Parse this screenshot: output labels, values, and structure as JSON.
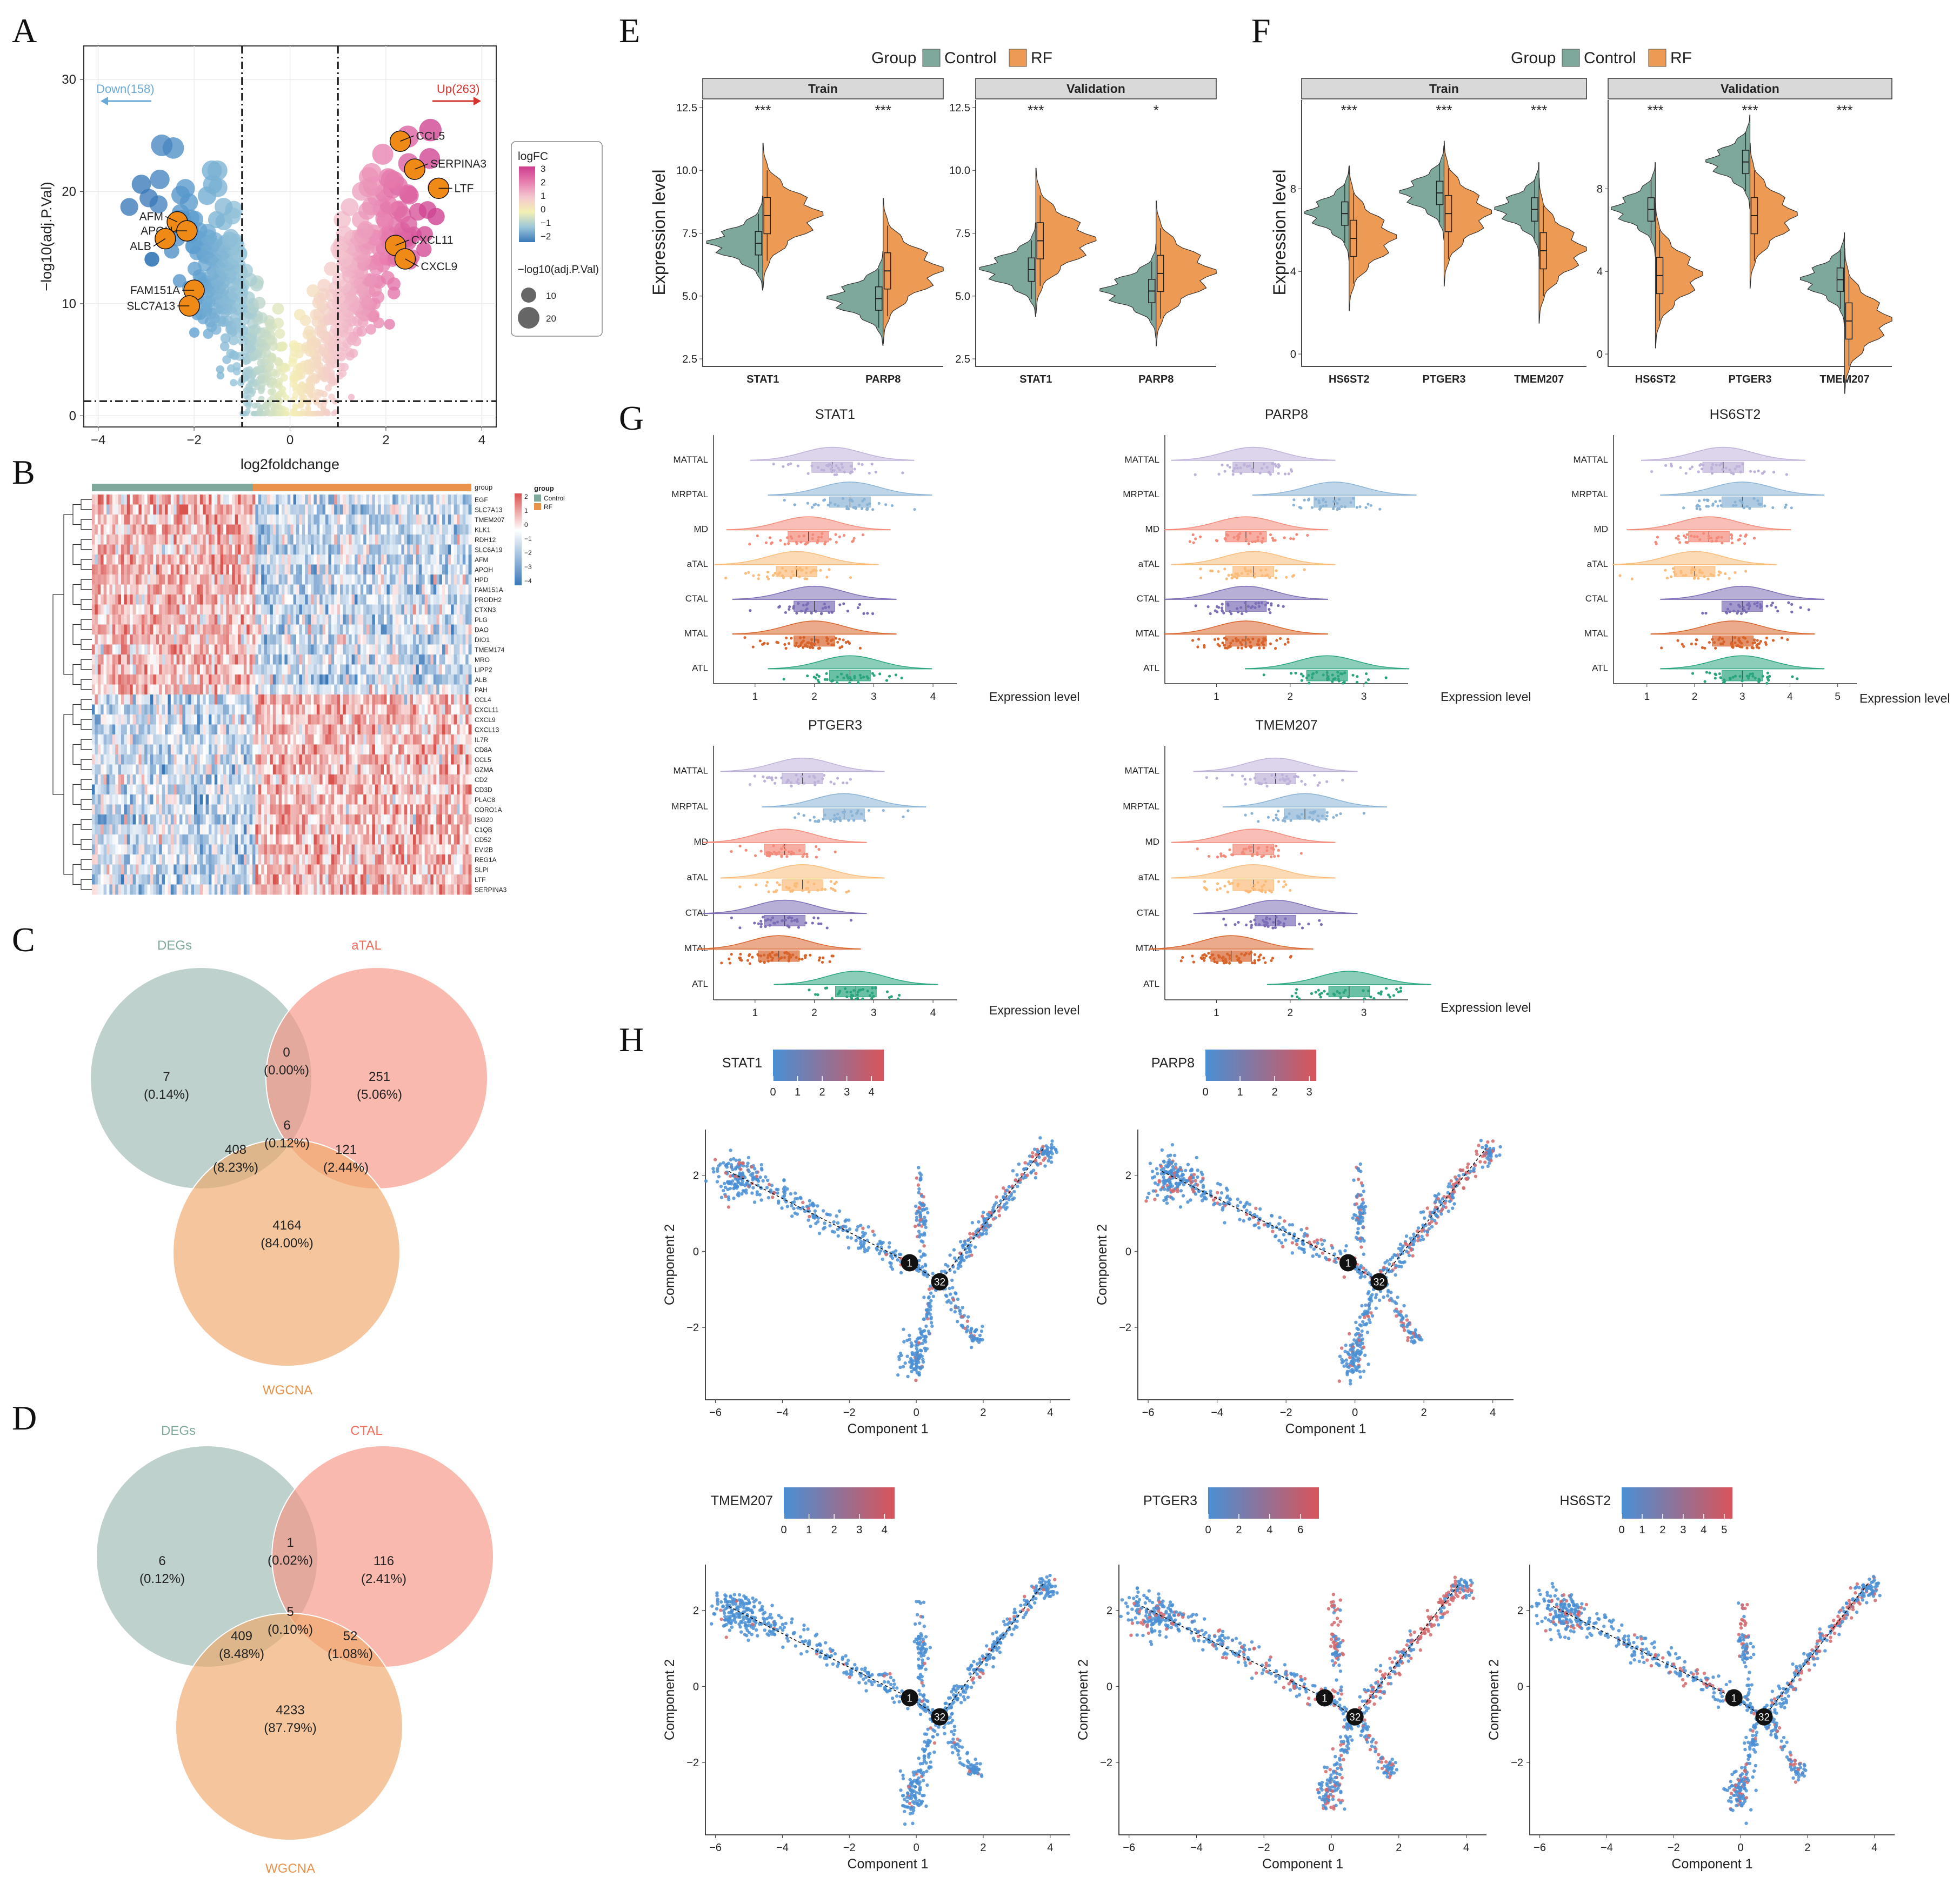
{
  "panel_letters": [
    "A",
    "B",
    "C",
    "D",
    "E",
    "F",
    "G",
    "H"
  ],
  "chart_data": [
    {
      "panel": "A",
      "type": "scatter",
      "title": "",
      "xlabel": "log2foldchange",
      "ylabel": "−log10(adj.P.Val)",
      "xlim": [
        -4.3,
        4.3
      ],
      "ylim": [
        -1,
        33
      ],
      "xticks": [
        -4,
        -2,
        0,
        2,
        4
      ],
      "yticks": [
        0,
        10,
        20,
        30
      ],
      "thresholds": {
        "logfc": [
          -1,
          1
        ],
        "p": 1.3
      },
      "annot_down": "Down(158)",
      "annot_up": "Up(263)",
      "legend_color_title": "logFC",
      "legend_color_ticks": [
        "3",
        "2",
        "1",
        "0",
        "−1",
        "−2"
      ],
      "legend_size_title": "−log10(adj.P.Val)",
      "legend_size_items": [
        {
          "label": "10",
          "value": 10
        },
        {
          "label": "20",
          "value": 20
        }
      ],
      "labeled_genes": [
        {
          "gene": "CCL5",
          "x": 2.3,
          "y": 24.5
        },
        {
          "gene": "SERPINA3",
          "x": 2.6,
          "y": 22.0
        },
        {
          "gene": "LTF",
          "x": 3.1,
          "y": 20.3
        },
        {
          "gene": "CXCL11",
          "x": 2.2,
          "y": 15.2
        },
        {
          "gene": "CXCL9",
          "x": 2.4,
          "y": 14.0
        },
        {
          "gene": "AFM",
          "x": -2.35,
          "y": 17.3
        },
        {
          "gene": "APOH",
          "x": -2.15,
          "y": 16.5
        },
        {
          "gene": "ALB",
          "x": -2.6,
          "y": 15.8
        },
        {
          "gene": "FAM151A",
          "x": -2.0,
          "y": 11.2
        },
        {
          "gene": "SLC7A13",
          "x": -2.1,
          "y": 9.8
        }
      ]
    },
    {
      "panel": "B",
      "type": "heatmap",
      "annotation_title": "group",
      "groups": [
        "Control",
        "RF"
      ],
      "group_colors": [
        "#7fa89c",
        "#e8924a"
      ],
      "scale_ticks": [
        "2",
        "1",
        "0",
        "−1",
        "−2",
        "−3",
        "−4"
      ],
      "annotation_label": "group",
      "genes": [
        "EGF",
        "SLC7A13",
        "TMEM207",
        "KLK1",
        "RDH12",
        "SLC6A19",
        "AFM",
        "APOH",
        "HPD",
        "FAM151A",
        "PRODH2",
        "CTXN3",
        "PLG",
        "DAO",
        "DIO1",
        "TMEM174",
        "MRO",
        "LIPP2",
        "ALB",
        "PAH",
        "CCL4",
        "CXCL11",
        "CXCL9",
        "CXCL13",
        "IL7R",
        "CD8A",
        "CCL5",
        "GZMA",
        "CD2",
        "CD3D",
        "PLAC8",
        "CORO1A",
        "ISG20",
        "C1QB",
        "CD52",
        "EVI2B",
        "REG1A",
        "SLPI",
        "LTF",
        "SERPINA3"
      ],
      "down_gene_count": 20
    },
    {
      "panel": "C",
      "type": "venn",
      "sets": [
        "DEGs",
        "aTAL",
        "WGCNA"
      ],
      "regions": [
        {
          "n": "7",
          "pct": "(0.14%)"
        },
        {
          "n": "0",
          "pct": "(0.00%)"
        },
        {
          "n": "251",
          "pct": "(5.06%)"
        },
        {
          "n": "6",
          "pct": "(0.12%)"
        },
        {
          "n": "408",
          "pct": "(8.23%)"
        },
        {
          "n": "121",
          "pct": "(2.44%)"
        },
        {
          "n": "4164",
          "pct": "(84.00%)"
        }
      ]
    },
    {
      "panel": "D",
      "type": "venn",
      "sets": [
        "DEGs",
        "CTAL",
        "WGCNA"
      ],
      "regions": [
        {
          "n": "6",
          "pct": "(0.12%)"
        },
        {
          "n": "1",
          "pct": "(0.02%)"
        },
        {
          "n": "116",
          "pct": "(2.41%)"
        },
        {
          "n": "5",
          "pct": "(0.10%)"
        },
        {
          "n": "409",
          "pct": "(8.48%)"
        },
        {
          "n": "52",
          "pct": "(1.08%)"
        },
        {
          "n": "4233",
          "pct": "(87.79%)"
        }
      ]
    },
    {
      "panel": "E",
      "type": "violin",
      "legend_title": "Group",
      "legend_items": [
        "Control",
        "RF"
      ],
      "colors": {
        "Control": "#7fa89c",
        "RF": "#ec9a54"
      },
      "ylabel": "Expression level",
      "facets": [
        "Train",
        "Validation"
      ],
      "genes": [
        "STAT1",
        "PARP8"
      ],
      "ylim": [
        2.2,
        12.8
      ],
      "yticks": [
        "2.5",
        "5.0",
        "7.5",
        "10.0",
        "12.5"
      ],
      "significance": [
        [
          "***",
          "***"
        ],
        [
          "***",
          "*"
        ]
      ],
      "medians": {
        "Train": {
          "Control": [
            7.1,
            4.9
          ],
          "RF": [
            8.2,
            6.0
          ]
        },
        "Validation": {
          "Control": [
            6.05,
            5.2
          ],
          "RF": [
            7.2,
            5.9
          ]
        }
      }
    },
    {
      "panel": "F",
      "type": "violin",
      "legend_title": "Group",
      "legend_items": [
        "Control",
        "RF"
      ],
      "colors": {
        "Control": "#7fa89c",
        "RF": "#ec9a54"
      },
      "ylabel": "Expression level",
      "facets": [
        "Train",
        "Validation"
      ],
      "genes": [
        "HS6ST2",
        "PTGER3",
        "TMEM207"
      ],
      "ylim": [
        -0.6,
        12.3
      ],
      "yticks": [
        "0",
        "4",
        "8"
      ],
      "significance": [
        [
          "***",
          "***",
          "***"
        ],
        [
          "***",
          "***",
          "***"
        ]
      ],
      "medians": {
        "Train": {
          "Control": [
            6.8,
            7.8,
            7.0
          ],
          "RF": [
            5.6,
            6.8,
            5.0
          ]
        },
        "Validation": {
          "Control": [
            7.0,
            9.3,
            3.6
          ],
          "RF": [
            3.8,
            6.7,
            1.6
          ]
        }
      }
    },
    {
      "panel": "G",
      "type": "raincloud",
      "xlabel": "Expression level",
      "plots": [
        {
          "gene": "STAT1",
          "xticks": [
            "1",
            "2",
            "3",
            "4"
          ],
          "xlim": [
            0.3,
            4.4
          ],
          "cells": [
            "MATTAL",
            "MRPTAL",
            "MD",
            "aTAL",
            "CTAL",
            "MTAL",
            "ATL"
          ],
          "medians": [
            2.3,
            2.6,
            1.9,
            1.7,
            2.0,
            2.0,
            2.6
          ]
        },
        {
          "gene": "PARP8",
          "xticks": [
            "1",
            "2",
            "3"
          ],
          "xlim": [
            0.3,
            3.6
          ],
          "cells": [
            "MATTAL",
            "MRPTAL",
            "MD",
            "aTAL",
            "CTAL",
            "MTAL",
            "ATL"
          ],
          "medians": [
            1.5,
            2.6,
            1.4,
            1.5,
            1.4,
            1.4,
            2.5
          ]
        },
        {
          "gene": "HS6ST2",
          "xticks": [
            "1",
            "2",
            "3",
            "4",
            "5"
          ],
          "xlim": [
            0.3,
            5.4
          ],
          "cells": [
            "MATTAL",
            "MRPTAL",
            "MD",
            "aTAL",
            "CTAL",
            "MTAL",
            "ATL"
          ],
          "medians": [
            2.6,
            3.0,
            2.3,
            2.0,
            3.0,
            2.8,
            3.0
          ]
        },
        {
          "gene": "PTGER3",
          "xticks": [
            "1",
            "2",
            "3",
            "4"
          ],
          "xlim": [
            0.3,
            4.4
          ],
          "cells": [
            "MATTAL",
            "MRPTAL",
            "MD",
            "aTAL",
            "CTAL",
            "MTAL",
            "ATL"
          ],
          "medians": [
            1.8,
            2.5,
            1.5,
            1.8,
            1.5,
            1.4,
            2.7
          ]
        },
        {
          "gene": "TMEM207",
          "xticks": [
            "1",
            "2",
            "3"
          ],
          "xlim": [
            0.3,
            3.6
          ],
          "cells": [
            "MATTAL",
            "MRPTAL",
            "MD",
            "aTAL",
            "CTAL",
            "MTAL",
            "ATL"
          ],
          "medians": [
            1.8,
            2.2,
            1.5,
            1.5,
            1.8,
            1.2,
            2.8
          ]
        }
      ]
    },
    {
      "panel": "H",
      "type": "scatter",
      "xlabel": "Component 1",
      "ylabel": "Component 2",
      "xlim": [
        -6.3,
        4.6
      ],
      "ylim": [
        -3.9,
        3.2
      ],
      "xticks": [
        "−6",
        "−4",
        "−2",
        "0",
        "2",
        "4"
      ],
      "yticks": [
        "2",
        "0",
        "−2"
      ],
      "nodes": [
        {
          "label": "1",
          "x": -0.2,
          "y": -0.3
        },
        {
          "label": "32",
          "x": 0.7,
          "y": -0.8
        }
      ],
      "plots": [
        {
          "gene": "STAT1",
          "scale_ticks": [
            "0",
            "1",
            "2",
            "3",
            "4"
          ],
          "max": 4.5
        },
        {
          "gene": "PARP8",
          "scale_ticks": [
            "0",
            "1",
            "2",
            "3"
          ],
          "max": 3.2
        },
        {
          "gene": "TMEM207",
          "scale_ticks": [
            "0",
            "1",
            "2",
            "3",
            "4"
          ],
          "max": 4.4
        },
        {
          "gene": "PTGER3",
          "scale_ticks": [
            "0",
            "2",
            "4",
            "6"
          ],
          "max": 7.2
        },
        {
          "gene": "HS6ST2",
          "scale_ticks": [
            "0",
            "1",
            "2",
            "3",
            "4",
            "5"
          ],
          "max": 5.4
        }
      ]
    }
  ]
}
